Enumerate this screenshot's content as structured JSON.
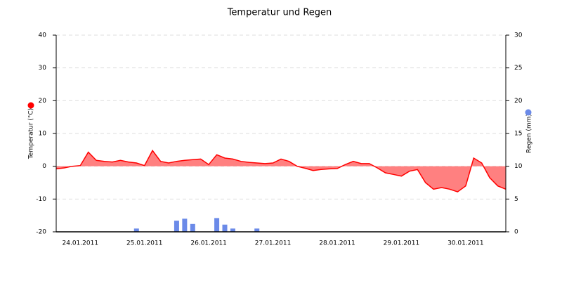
{
  "chart_data": {
    "type": "line",
    "title": "Temperatur und Regen",
    "categories": [
      null,
      null,
      null,
      "24.01.2011",
      null,
      null,
      null,
      null,
      null,
      null,
      null,
      "25.01.2011",
      null,
      null,
      null,
      null,
      null,
      null,
      null,
      "26.01.2011",
      null,
      null,
      null,
      null,
      null,
      null,
      null,
      "27.01.2011",
      null,
      null,
      null,
      null,
      null,
      null,
      null,
      "28.01.2011",
      null,
      null,
      null,
      null,
      null,
      null,
      null,
      "29.01.2011",
      null,
      null,
      null,
      null,
      null,
      null,
      null,
      "30.01.2011",
      null,
      null,
      null,
      null,
      null
    ],
    "series": [
      {
        "name": "Temperatur (°C)",
        "color": "#ff0000",
        "fill": "#ff8080",
        "values": [
          -0.8,
          -0.5,
          0,
          0.2,
          4.3,
          1.8,
          1.5,
          1.3,
          1.8,
          1.3,
          1.0,
          0.2,
          4.8,
          1.5,
          1.0,
          1.5,
          1.8,
          2.0,
          2.2,
          0.5,
          3.5,
          2.5,
          2.2,
          1.5,
          1.2,
          1.0,
          0.8,
          1.0,
          2.2,
          1.5,
          0,
          -0.6,
          -1.3,
          -1.0,
          -0.8,
          -0.7,
          0.5,
          1.5,
          0.8,
          0.8,
          -0.5,
          -2.0,
          -2.5,
          -3.0,
          -1.5,
          -1.0,
          -5.0,
          -7.0,
          -6.5,
          -7.0,
          -7.8,
          -6.0,
          2.5,
          1.0,
          -3.5,
          -6.0,
          -7.0
        ]
      },
      {
        "name": "Regen (mm)",
        "color": "#6b8ae8",
        "axis": "y2",
        "type": "bar",
        "values": [
          0,
          0,
          0,
          0,
          0,
          0,
          0,
          0,
          0,
          0,
          0.5,
          0,
          0,
          0,
          0,
          1.7,
          2.0,
          1.2,
          0,
          0,
          2.1,
          1.1,
          0.5,
          0,
          0,
          0.5,
          0,
          0,
          0,
          0,
          0,
          0,
          0,
          0,
          0,
          0,
          0,
          0,
          0,
          0,
          0,
          0,
          0,
          0,
          0,
          0,
          0,
          0,
          0,
          0,
          0,
          0,
          0,
          0,
          0,
          0,
          0
        ]
      }
    ],
    "ylim": [
      -20,
      40
    ],
    "yticks": [
      -20,
      -10,
      0,
      10,
      20,
      30,
      40
    ],
    "y2lim": [
      0,
      30
    ],
    "y2ticks": [
      0,
      5,
      10,
      15,
      20,
      25,
      30
    ],
    "grid": true
  }
}
